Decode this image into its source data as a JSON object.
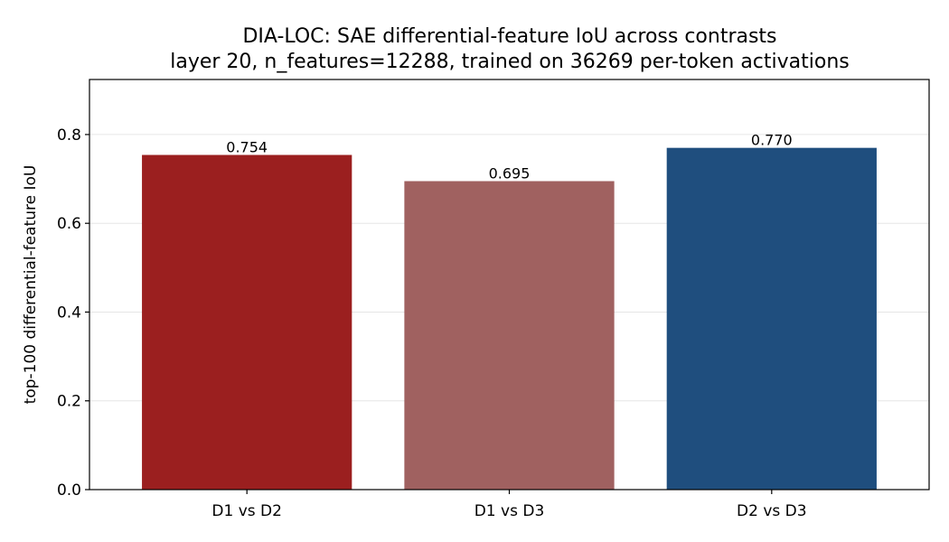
{
  "chart_data": {
    "type": "bar",
    "title": "DIA-LOC: SAE differential-feature IoU across contrasts",
    "subtitle": "layer 20, n_features=12288, trained on 36269 per-token activations",
    "xlabel": "",
    "ylabel": "top-100 differential-feature IoU",
    "categories": [
      "D1 vs D2",
      "D1 vs D3",
      "D2 vs D3"
    ],
    "values": [
      0.754,
      0.695,
      0.77
    ],
    "data_labels": [
      "0.754",
      "0.695",
      "0.770"
    ],
    "colors": [
      "#9b1f1f",
      "#a06160",
      "#1f4e7e"
    ],
    "ylim": [
      0,
      0.924
    ],
    "yticks": [
      0.0,
      0.2,
      0.4,
      0.6,
      0.8
    ],
    "ytick_labels": [
      "0.0",
      "0.2",
      "0.4",
      "0.6",
      "0.8"
    ],
    "grid": "horizontal",
    "legend": "none"
  }
}
